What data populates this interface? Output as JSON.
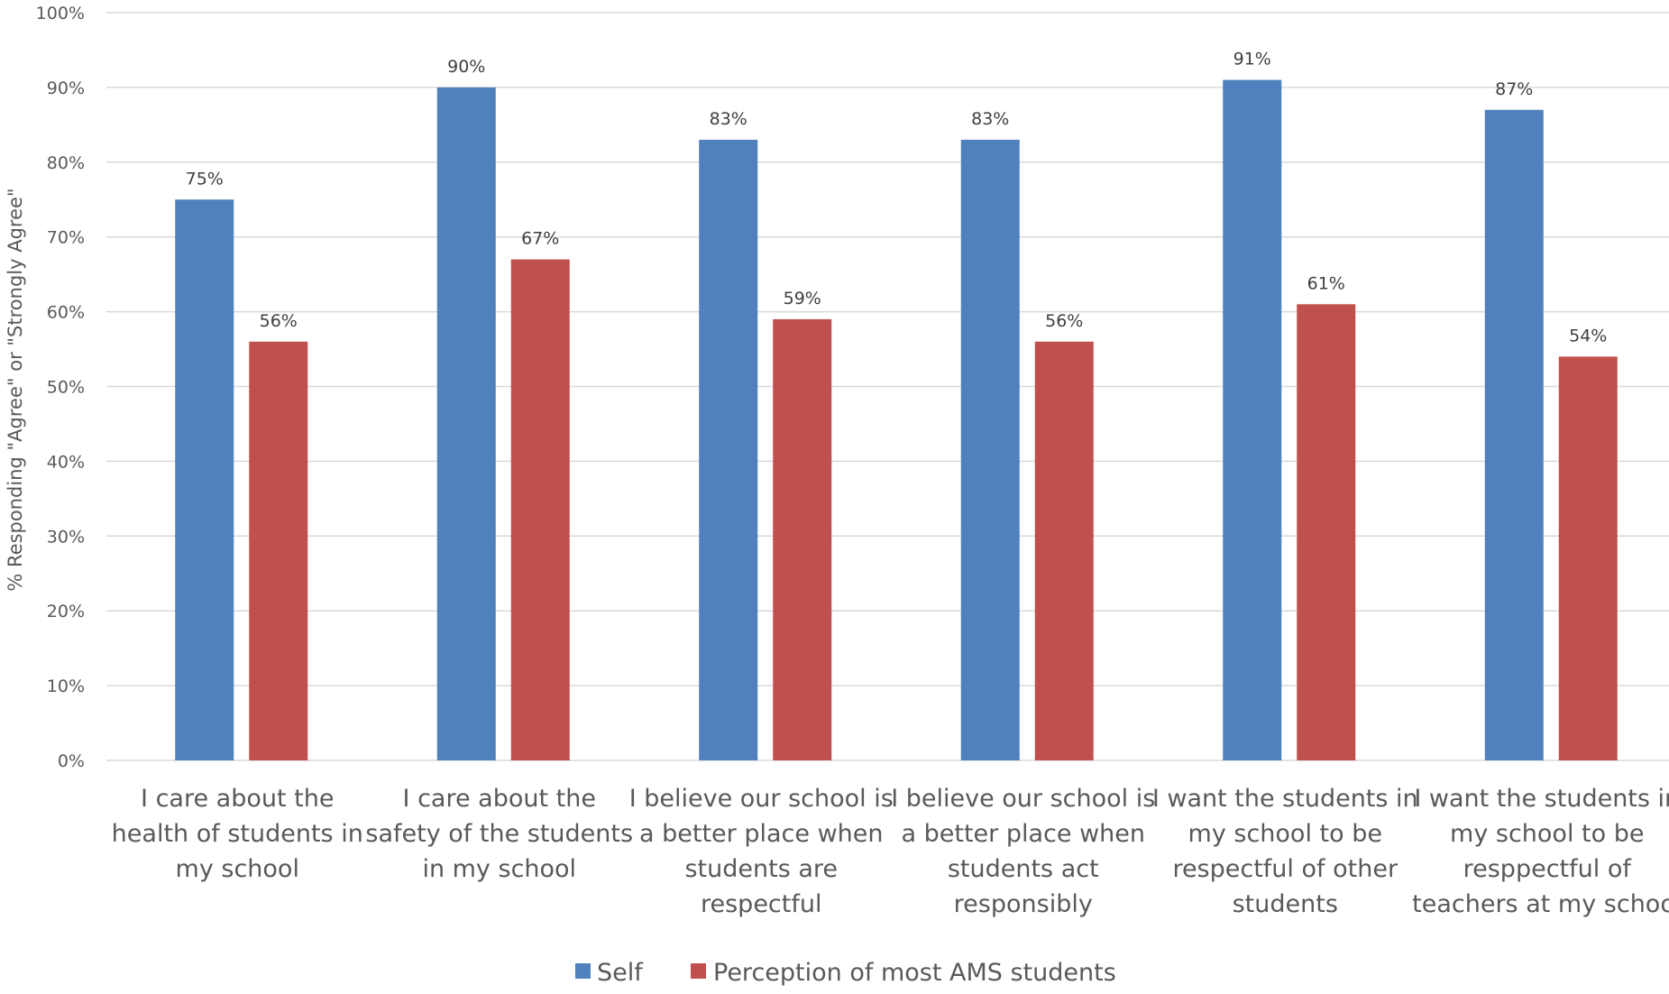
{
  "chart_data": {
    "type": "bar",
    "title": "",
    "xlabel": "",
    "ylabel": "% Responding \"Agree\" or \"Strongly Agree\"",
    "ylim": [
      0,
      100
    ],
    "yticks": [
      "0%",
      "10%",
      "20%",
      "30%",
      "40%",
      "50%",
      "60%",
      "70%",
      "80%",
      "90%",
      "100%"
    ],
    "grid": true,
    "legend_position": "bottom",
    "categories": [
      [
        "I care about the",
        "health of students in",
        "my school"
      ],
      [
        "I care about the",
        "safety of the students",
        "in my school"
      ],
      [
        "I believe our school is",
        "a better place when",
        "students are",
        "respectful"
      ],
      [
        "I believe our school is",
        "a better place when",
        "students act",
        "responsibly"
      ],
      [
        "I want the students in",
        "my school to be",
        "respectful of other",
        "students"
      ],
      [
        "I want the students in",
        "my school to be",
        "resppectful of",
        "teachers at my school"
      ]
    ],
    "series": [
      {
        "name": "Self",
        "color": "#4f81bd",
        "values": [
          75,
          90,
          83,
          83,
          91,
          87
        ],
        "labels": [
          "75%",
          "90%",
          "83%",
          "83%",
          "91%",
          "87%"
        ]
      },
      {
        "name": "Perception of most AMS students",
        "color": "#c0504d",
        "values": [
          56,
          67,
          59,
          56,
          61,
          54
        ],
        "labels": [
          "56%",
          "67%",
          "59%",
          "56%",
          "61%",
          "54%"
        ]
      }
    ]
  }
}
